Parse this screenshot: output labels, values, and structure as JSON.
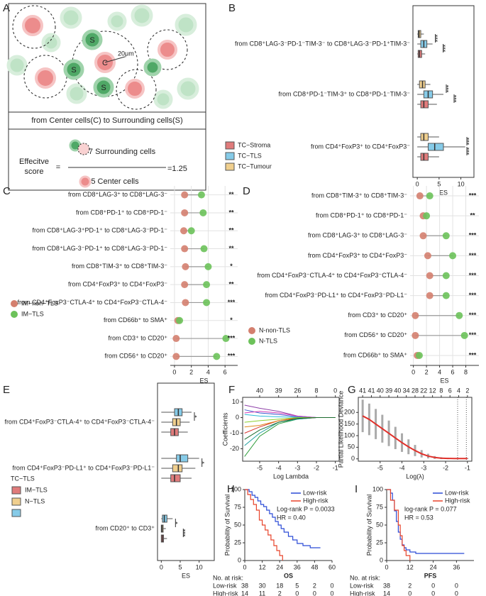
{
  "panel_labels": [
    "A",
    "B",
    "C",
    "D",
    "E",
    "F",
    "G",
    "H",
    "I"
  ],
  "diagram": {
    "cell_labels": [
      "S",
      "C",
      "S",
      "S"
    ],
    "scale": "20μm",
    "caption": "from Center cells(C) to Surrounding cells(S)",
    "formula": {
      "lhs": [
        "Effecitve",
        "score"
      ],
      "equals": "=",
      "numerator": "7 Surrounding cells",
      "denominator": "5 Center cells",
      "result": "=1.25"
    }
  },
  "chart_data": [
    {
      "type": "box",
      "categories": [
        "from CD8⁺LAG-3⁻PD-1⁻TIM-3⁻ to CD8⁺LAG-3⁻PD-1⁺TIM-3⁻",
        "from CD8⁺PD-1⁻TIM-3⁺ to CD8⁺PD-1⁻TIM-3⁻",
        "from CD4⁺FoxP3⁺ to CD4⁺FoxP3⁻"
      ],
      "series": [
        {
          "name": "TC−Stroma",
          "color": "#e07b7b",
          "values": [
            [
              0,
              0.2,
              0.5,
              1,
              1.8
            ],
            [
              0,
              0.8,
              1.5,
              2.5,
              4.5
            ],
            [
              0,
              0.8,
              1.5,
              2.5,
              5
            ]
          ]
        },
        {
          "name": "TC−TLS",
          "color": "#86cbe8",
          "values": [
            [
              0,
              0.8,
              1.5,
              2.2,
              3.5
            ],
            [
              0,
              1.5,
              2.5,
              3.5,
              6
            ],
            [
              0,
              2.5,
              4,
              6,
              11
            ]
          ]
        },
        {
          "name": "TC−Tumour",
          "color": "#f0cf8e",
          "values": [
            [
              0,
              0.2,
              0.4,
              0.8,
              1.5
            ],
            [
              0,
              0.5,
              1.2,
              1.8,
              3
            ],
            [
              0,
              0.8,
              1.5,
              2.5,
              5
            ]
          ]
        }
      ],
      "xlim": [
        -1,
        13
      ],
      "xticks": [
        0,
        5,
        10
      ],
      "xlabel": "ES",
      "significance": [
        [
          "***",
          "***"
        ],
        [
          "***",
          "***"
        ],
        [
          "***",
          "***"
        ]
      ]
    },
    {
      "type": "dot",
      "categories": [
        "from CD8⁺LAG-3⁺ to CD8⁺LAG-3⁻",
        "from CD8⁺PD-1⁺ to CD8⁺PD-1⁻",
        "from CD8⁺LAG-3⁺PD-1⁺ to CD8⁺LAG-3⁻PD-1⁻",
        "from CD8⁺LAG-3⁻PD-1⁺ to CD8⁺LAG-3⁻PD-1⁻",
        "from CD8⁺TIM-3⁺ to CD8⁺TIM-3⁻",
        "from CD4⁺FoxP3⁺ to CD4⁺FoxP3⁻",
        "from CD4⁺FoxP3⁻CTLA-4⁺ to CD4⁺FoxP3⁻CTLA-4⁻",
        "from CD66b⁺ to SMA⁺",
        "from CD3⁺ to CD20⁺",
        "from CD56⁺ to CD20⁺"
      ],
      "series": [
        {
          "name": "IM−non−TLS",
          "color": "#d4806f",
          "values": [
            1.2,
            1.2,
            1.1,
            1.2,
            1.3,
            1.2,
            1.3,
            0.4,
            0.2,
            0.2
          ]
        },
        {
          "name": "IM−TLS",
          "color": "#6cc25a",
          "values": [
            3.2,
            3.4,
            2.0,
            3.5,
            4.0,
            3.8,
            3.8,
            0.6,
            6.1,
            5.0
          ]
        }
      ],
      "xlim": [
        -0.5,
        7.5
      ],
      "xticks": [
        0,
        2,
        4,
        6
      ],
      "xlabel": "ES",
      "grid": true,
      "significance": [
        "**",
        "**",
        "**",
        "**",
        "*",
        "**",
        "***",
        "*",
        "***",
        "***"
      ]
    },
    {
      "type": "dot",
      "categories": [
        "from CD8⁺TIM-3⁺ to CD8⁺TIM-3⁻",
        "from CD8⁺PD-1⁺ to CD8⁺PD-1⁻",
        "from CD8⁺LAG-3⁺ to CD8⁺LAG-3⁻",
        "from CD4⁺FoxP3⁺ to CD4⁺FoxP3⁻",
        "from CD4⁺FoxP3⁻CTLA-4⁺ to CD4⁺FoxP3⁻CTLA-4⁻",
        "from CD4⁺FoxP3⁻PD-L1⁺ to CD4⁺FoxP3⁻PD-L1⁻",
        "from CD3⁺ to CD20⁺",
        "from CD56⁺ to CD20⁺",
        "from CD66b⁺ to SMA⁺"
      ],
      "series": [
        {
          "name": "N-non-TLS",
          "color": "#d4806f",
          "values": [
            1.0,
            1.5,
            1.5,
            2.2,
            2.5,
            2.5,
            0.3,
            0.3,
            0.6
          ]
        },
        {
          "name": "N-TLS",
          "color": "#6cc25a",
          "values": [
            2.5,
            2.0,
            5.0,
            6.0,
            5.0,
            5.0,
            7.0,
            7.8,
            0.9
          ]
        }
      ],
      "xlim": [
        -0.5,
        10
      ],
      "xticks": [
        0,
        2,
        4,
        6,
        8
      ],
      "xlabel": "ES",
      "grid": true,
      "significance": [
        "***",
        "**",
        "***",
        "***",
        "***",
        "***",
        "***",
        "***",
        "***"
      ]
    },
    {
      "type": "box",
      "categories": [
        "from CD4⁺FoxP3⁻CTLA-4⁺ to CD4⁺FoxP3⁻CTLA-4⁻",
        "from CD4⁺FoxP3⁻PD-L1⁺ to CD4⁺FoxP3⁻PD-L1⁻",
        "from CD20⁺ to CD3⁺"
      ],
      "series": [
        {
          "name": "IM−TLS",
          "color": "#e07b7b",
          "values": [
            [
              0,
              2.5,
              3.5,
              4.5,
              7
            ],
            [
              0,
              2.5,
              3.5,
              5,
              8
            ],
            [
              0,
              0,
              0.3,
              0.6,
              1.5
            ]
          ]
        },
        {
          "name": "N−TLS",
          "color": "#f0cf8e",
          "values": [
            [
              0,
              3,
              4,
              5,
              7.5
            ],
            [
              0,
              3,
              4.5,
              5.5,
              9
            ],
            [
              0,
              0,
              0.2,
              0.5,
              1.2
            ]
          ]
        },
        {
          "name": "TC−TLS",
          "color": "#86cbe8",
          "values": [
            [
              0,
              3.5,
              4.5,
              5.5,
              8
            ],
            [
              0,
              4,
              5,
              7,
              10
            ],
            [
              0,
              0.3,
              0.8,
              1.5,
              3
            ]
          ]
        }
      ],
      "xlim": [
        -1,
        14
      ],
      "xticks": [
        0,
        5,
        10
      ],
      "xlabel": "ES",
      "significance": [
        [
          "*"
        ],
        [
          "*"
        ],
        [
          "*",
          "***"
        ]
      ]
    },
    {
      "type": "line",
      "xlabel": "Log Lambda",
      "ylabel": "Coefficients",
      "x": [
        -5.8,
        -5,
        -4,
        -3,
        -2,
        -1
      ],
      "series": [
        {
          "color": "#8e3fa8",
          "values": [
            8,
            6,
            4,
            1,
            0,
            0
          ]
        },
        {
          "color": "#2e9c3a",
          "values": [
            -25,
            -12,
            -4,
            -1,
            0,
            0
          ]
        },
        {
          "color": "#1f9e9e",
          "values": [
            -18,
            -10,
            -3,
            -1,
            0,
            0
          ]
        },
        {
          "color": "#3a5bd0",
          "values": [
            5,
            3,
            2,
            0.5,
            0,
            0
          ]
        },
        {
          "color": "#d8342f",
          "values": [
            -10,
            -6,
            -2,
            -0.5,
            0,
            0
          ]
        },
        {
          "color": "#d23fb8",
          "values": [
            3,
            4,
            3,
            1,
            0,
            0
          ]
        },
        {
          "color": "#e08a1e",
          "values": [
            -6,
            -5,
            -2,
            0,
            0,
            0
          ]
        },
        {
          "color": "#2bbcd8",
          "values": [
            2,
            1,
            0.5,
            0.2,
            0,
            0
          ]
        },
        {
          "color": "#8ccf2f",
          "values": [
            -3,
            -2,
            -1,
            0,
            0,
            0
          ]
        },
        {
          "color": "#1c6b2e",
          "values": [
            -14,
            -8,
            -3,
            -0.5,
            0,
            0
          ]
        }
      ],
      "xlim": [
        -5.9,
        -0.8
      ],
      "ylim": [
        -28,
        13
      ],
      "xticks": [
        -5,
        -4,
        -3,
        -2,
        -1
      ],
      "yticks": [
        -20,
        -10,
        0,
        10
      ],
      "x2ticks": [
        {
          "value": -5,
          "label": "40"
        },
        {
          "value": -4,
          "label": "39"
        },
        {
          "value": -3,
          "label": "26"
        },
        {
          "value": -2,
          "label": "8"
        },
        {
          "value": -1,
          "label": "0"
        }
      ]
    },
    {
      "type": "errorbar",
      "xlabel": "Log(λ)",
      "ylabel": "Partial Likelihood Deviance",
      "x": [
        -5.8,
        -5.5,
        -5.2,
        -4.9,
        -4.6,
        -4.3,
        -4.0,
        -3.7,
        -3.4,
        -3.1,
        -2.8,
        -2.5,
        -2.2,
        -1.9,
        -1.6,
        -1.3,
        -1.0
      ],
      "values": [
        185,
        170,
        150,
        130,
        110,
        90,
        70,
        52,
        36,
        22,
        12,
        6,
        3,
        2,
        1.5,
        1.5,
        1.5
      ],
      "errors": [
        70,
        68,
        65,
        60,
        55,
        48,
        40,
        32,
        24,
        16,
        10,
        6,
        4,
        3,
        2,
        2,
        2
      ],
      "color": "#e0302a",
      "xlim": [
        -6,
        -0.8
      ],
      "ylim": [
        -10,
        265
      ],
      "xticks": [
        -5,
        -4,
        -3,
        -2,
        -1
      ],
      "yticks": [
        0,
        50,
        100,
        150,
        200
      ],
      "x2ticks": [
        {
          "value": -5.8,
          "label": "41"
        },
        {
          "value": -5.4,
          "label": "41"
        },
        {
          "value": -5.0,
          "label": "40"
        },
        {
          "value": -4.6,
          "label": "39"
        },
        {
          "value": -4.2,
          "label": "40"
        },
        {
          "value": -3.8,
          "label": "34"
        },
        {
          "value": -3.4,
          "label": "28"
        },
        {
          "value": -3.0,
          "label": "22"
        },
        {
          "value": -2.6,
          "label": "12"
        },
        {
          "value": -2.2,
          "label": "8"
        },
        {
          "value": -1.8,
          "label": "6"
        },
        {
          "value": -1.4,
          "label": "4"
        },
        {
          "value": -1.0,
          "label": "2"
        }
      ],
      "vlines": [
        -1.45,
        -1.05
      ]
    },
    {
      "type": "survival",
      "xlabel": "OS",
      "ylabel": "Probability of Survival",
      "series": [
        {
          "name": "Low-risk",
          "color": "#2b4bd6",
          "x": [
            0,
            3,
            5,
            7,
            9,
            11,
            13,
            15,
            17,
            19,
            21,
            23,
            25,
            27,
            30,
            33,
            36,
            40,
            45,
            52
          ],
          "values": [
            100,
            97,
            92,
            89,
            84,
            79,
            76,
            71,
            66,
            61,
            55,
            50,
            45,
            40,
            34,
            29,
            24,
            21,
            18,
            18
          ]
        },
        {
          "name": "High-risk",
          "color": "#e8432a",
          "x": [
            0,
            2,
            4,
            6,
            8,
            10,
            12,
            14,
            16,
            18,
            20,
            22,
            24,
            26
          ],
          "values": [
            100,
            93,
            86,
            79,
            71,
            57,
            50,
            43,
            36,
            29,
            21,
            14,
            7,
            0
          ]
        }
      ],
      "xlim": [
        0,
        60
      ],
      "xticks": [
        0,
        12,
        24,
        36,
        48,
        60
      ],
      "ylim": [
        0,
        100
      ],
      "yticks": [
        0,
        25,
        50,
        75,
        100
      ],
      "annotations": [
        "Log-rank P = 0.0033",
        "HR = 0.40"
      ],
      "risk_table": {
        "title": "No. at risk:",
        "rows": [
          {
            "name": "Low-risk",
            "values": [
              38,
              30,
              18,
              5,
              2,
              0
            ]
          },
          {
            "name": "High-risk",
            "values": [
              14,
              11,
              2,
              0,
              0,
              0
            ]
          }
        ]
      }
    },
    {
      "type": "survival",
      "xlabel": "PFS",
      "ylabel": "Probability of Survival",
      "series": [
        {
          "name": "Low-risk",
          "color": "#2b4bd6",
          "x": [
            0,
            2,
            3,
            4,
            5,
            6,
            7,
            8,
            9,
            10,
            12,
            15,
            20,
            30,
            40
          ],
          "values": [
            100,
            95,
            85,
            70,
            55,
            40,
            30,
            22,
            18,
            15,
            12,
            10,
            10,
            10,
            10
          ]
        },
        {
          "name": "High-risk",
          "color": "#e8432a",
          "x": [
            0,
            2,
            4,
            6,
            7,
            8,
            9,
            10,
            12
          ],
          "values": [
            100,
            85,
            71,
            50,
            35,
            21,
            14,
            7,
            0
          ]
        }
      ],
      "xlim": [
        0,
        45
      ],
      "xticks": [
        0,
        12,
        24,
        36
      ],
      "ylim": [
        0,
        100
      ],
      "yticks": [
        0,
        25,
        50,
        75,
        100
      ],
      "annotations": [
        "log-rank P = 0.077",
        "HR = 0.53"
      ],
      "risk_table": {
        "title": "No. at risk:",
        "rows": [
          {
            "name": "Low-risk",
            "values": [
              38,
              2,
              0,
              0
            ]
          },
          {
            "name": "High-risk",
            "values": [
              14,
              0,
              0,
              0
            ]
          }
        ]
      }
    }
  ]
}
